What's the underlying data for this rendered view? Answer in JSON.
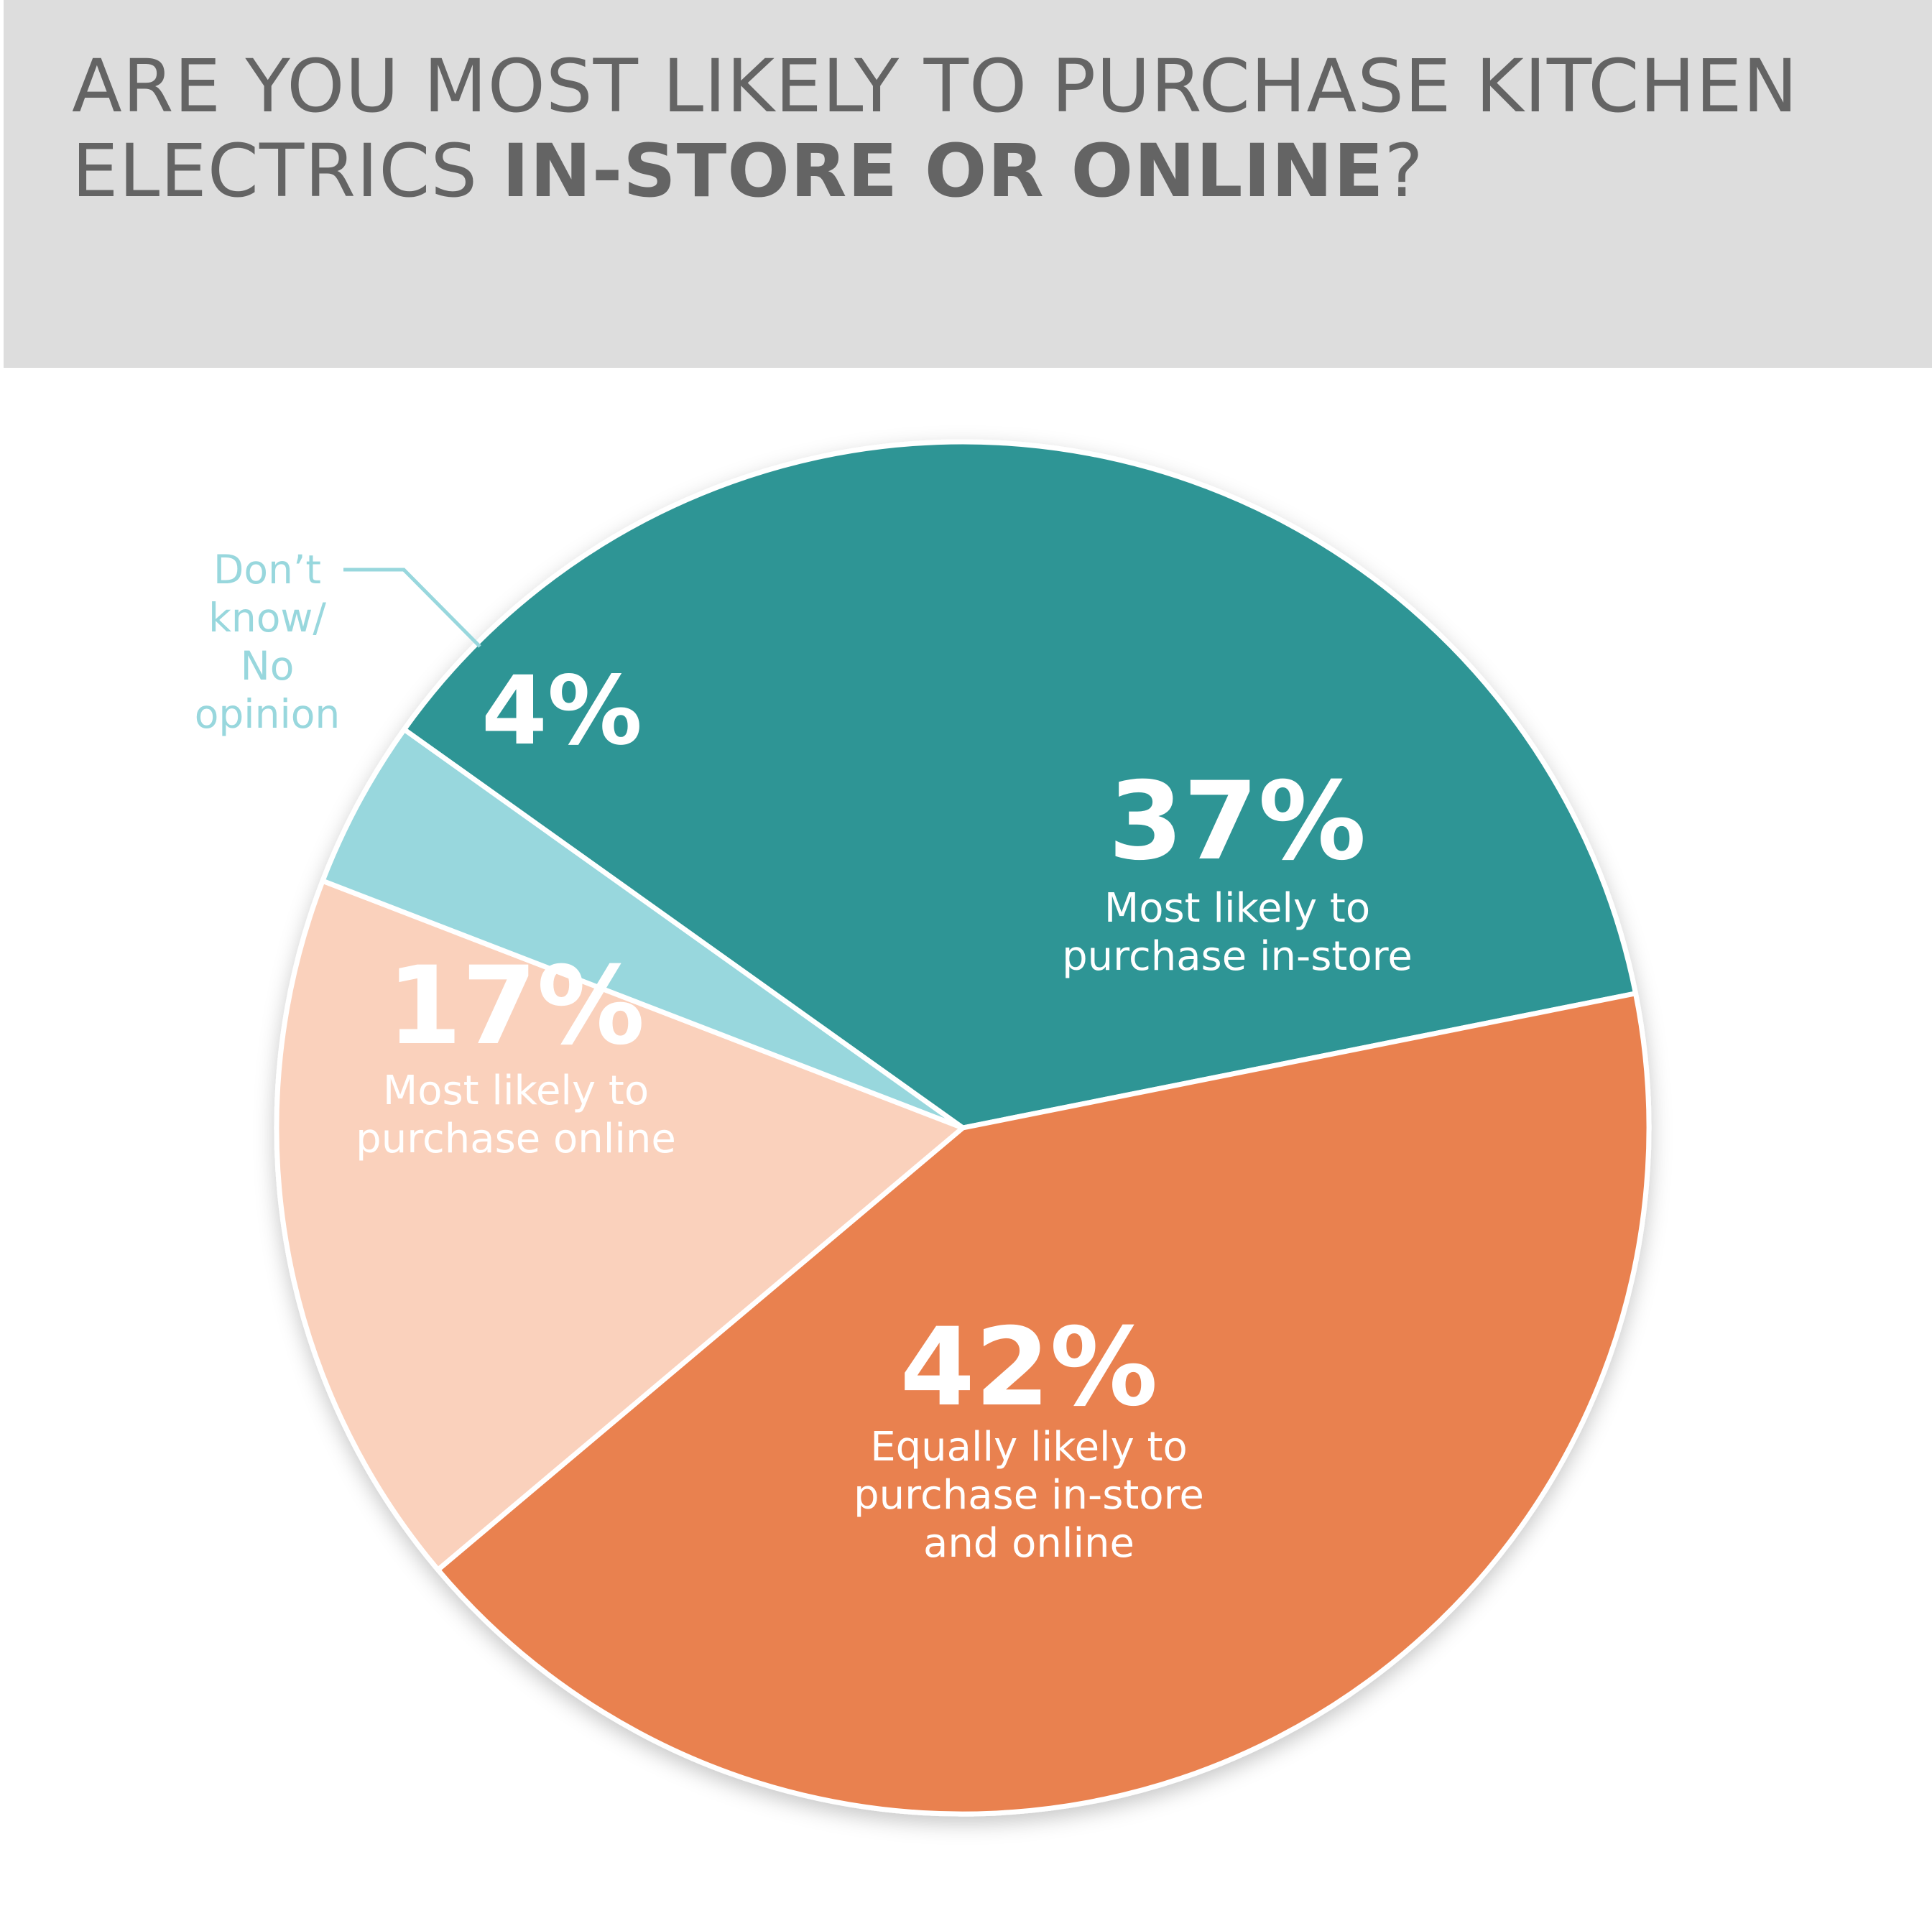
{
  "title": {
    "regular": "ARE YOU MOST LIKELY TO PURCHASE KITCHEN\nELECTRICS ",
    "bold": "IN-STORE OR ONLINE",
    "end": "?"
  },
  "colors": {
    "header_bg": "#dddddd",
    "title_text": "#646464",
    "teal": "#2e9595",
    "orange": "#e98150",
    "peach": "#fad1bc",
    "light_blue": "#98d7dd"
  },
  "chart_data": {
    "type": "pie",
    "slices": [
      {
        "value": 37,
        "value_label": "37%",
        "label_lines": [
          "Most likely to",
          "purchase in-store"
        ],
        "color": "#2e9595"
      },
      {
        "value": 42,
        "value_label": "42%",
        "label_lines": [
          "Equally likely to",
          "purchase in-store",
          "and online"
        ],
        "color": "#e98150"
      },
      {
        "value": 17,
        "value_label": "17%",
        "label_lines": [
          "Most likely to",
          "purchase online"
        ],
        "color": "#fad1bc"
      },
      {
        "value": 4,
        "value_label": "4%",
        "label_lines": [
          "Don’t",
          "know/",
          "No",
          "opinion"
        ],
        "color": "#98d7dd"
      }
    ]
  }
}
